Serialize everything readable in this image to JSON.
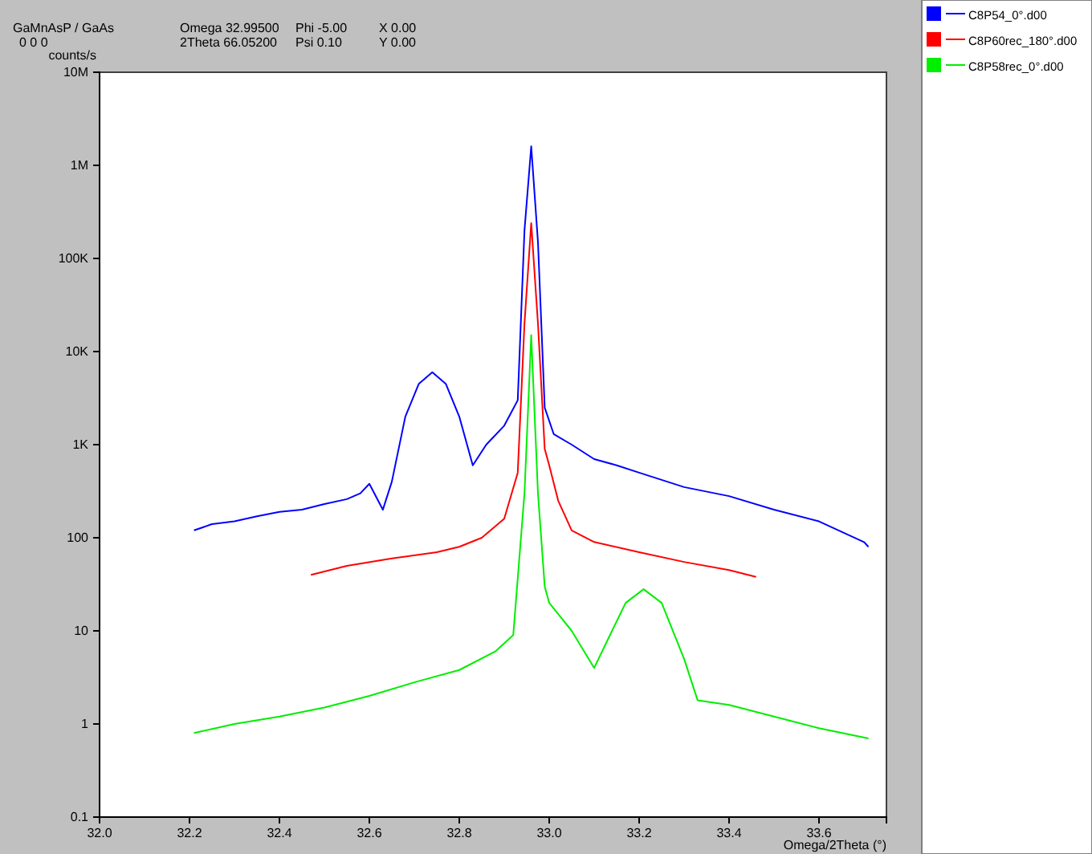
{
  "chart_data": {
    "type": "line",
    "ylabel": "counts/s",
    "xlabel": "Omega/2Theta (°)",
    "log": "y",
    "grid": false,
    "legend": "right",
    "marker": "none",
    "line_style": "solid",
    "xlim": [
      32.0,
      33.75
    ],
    "xticks": [
      {
        "value": 32.0,
        "label": "32.0"
      },
      {
        "value": 32.2,
        "label": "32.2"
      },
      {
        "value": 32.4,
        "label": "32.4"
      },
      {
        "value": 32.6,
        "label": "32.6"
      },
      {
        "value": 32.8,
        "label": "32.8"
      },
      {
        "value": 33.0,
        "label": "33.0"
      },
      {
        "value": 33.2,
        "label": "33.2"
      },
      {
        "value": 33.4,
        "label": "33.4"
      },
      {
        "value": 33.6,
        "label": "33.6"
      }
    ],
    "ylim": [
      0.1,
      10000000
    ],
    "yticks": [
      0.1,
      1,
      10,
      100,
      {
        "value": 1000,
        "label": "1K"
      },
      {
        "value": 10000,
        "label": "10K"
      },
      {
        "value": 100000,
        "label": "100K"
      },
      {
        "value": 1000000,
        "label": "1M"
      },
      {
        "value": 10000000,
        "label": "10M"
      }
    ],
    "annotations": [
      "GaMnAsP / GaAs",
      "0 0 0",
      "Omega 32.99500",
      "Phi -5.00",
      "X 0.00",
      "2Theta 66.05200",
      "Psi 0.10",
      "Y 0.00"
    ],
    "series": [
      {
        "name": "C8P54_0°.d00",
        "color": "#0000ff",
        "x": [
          32.21,
          32.25,
          32.3,
          32.35,
          32.4,
          32.45,
          32.5,
          32.55,
          32.58,
          32.6,
          32.63,
          32.65,
          32.68,
          32.71,
          32.74,
          32.77,
          32.8,
          32.83,
          32.86,
          32.9,
          32.93,
          32.945,
          32.96,
          32.975,
          32.99,
          33.01,
          33.05,
          33.1,
          33.15,
          33.2,
          33.3,
          33.4,
          33.5,
          33.6,
          33.7,
          33.71
        ],
        "values": [
          120,
          140,
          150,
          170,
          190,
          200,
          230,
          260,
          300,
          380,
          200,
          400,
          2000,
          4500,
          6000,
          4500,
          2000,
          600,
          1000,
          1600,
          3000,
          200000,
          1600000,
          150000,
          2500,
          1300,
          1000,
          700,
          600,
          500,
          350,
          280,
          200,
          150,
          90,
          80
        ]
      },
      {
        "name": "C8P60rec_180°.d00",
        "color": "#ff0000",
        "x": [
          32.47,
          32.55,
          32.65,
          32.75,
          32.8,
          32.85,
          32.9,
          32.93,
          32.945,
          32.96,
          32.975,
          32.99,
          33.0,
          33.02,
          33.05,
          33.1,
          33.2,
          33.3,
          33.4,
          33.46
        ],
        "values": [
          40,
          50,
          60,
          70,
          80,
          100,
          160,
          500,
          20000,
          240000,
          20000,
          900,
          600,
          250,
          120,
          90,
          70,
          55,
          45,
          38
        ]
      },
      {
        "name": "C8P58rec_0°.d00",
        "color": "#00ee00",
        "x": [
          32.21,
          32.3,
          32.4,
          32.5,
          32.6,
          32.7,
          32.8,
          32.88,
          32.92,
          32.945,
          32.96,
          32.975,
          32.99,
          33.0,
          33.05,
          33.1,
          33.13,
          33.17,
          33.21,
          33.25,
          33.3,
          33.33,
          33.4,
          33.5,
          33.6,
          33.71
        ],
        "values": [
          0.8,
          1,
          1.2,
          1.5,
          2,
          2.8,
          3.8,
          6,
          9,
          300,
          15000,
          300,
          30,
          20,
          10,
          4,
          8,
          20,
          28,
          20,
          5,
          1.8,
          1.6,
          1.2,
          0.9,
          0.7
        ]
      }
    ]
  }
}
